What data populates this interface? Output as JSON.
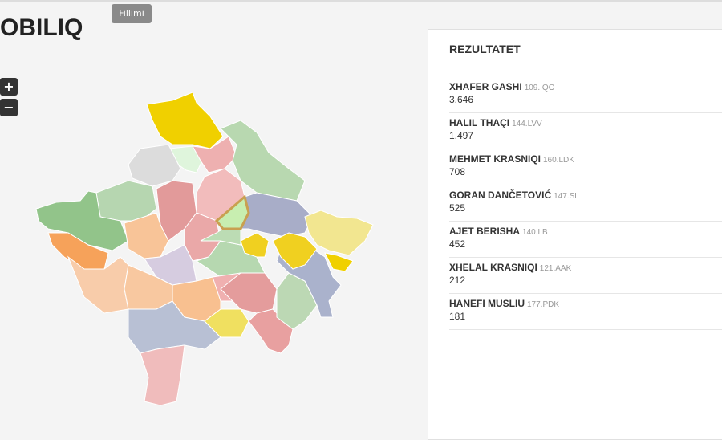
{
  "header": {
    "title": "OBILIQ",
    "tooltip": "Fillimi"
  },
  "zoom": {
    "in": "+",
    "out": "−"
  },
  "results": {
    "title": "REZULTATET",
    "rows": [
      {
        "name": "XHAFER GASHI",
        "party": "109.IQO",
        "votes": "3.646"
      },
      {
        "name": "HALIL THAÇI",
        "party": "144.LVV",
        "votes": "1.497"
      },
      {
        "name": "MEHMET KRASNIQI",
        "party": "160.LDK",
        "votes": "708"
      },
      {
        "name": "GORAN DANČETOVIĆ",
        "party": "147.SL",
        "votes": "525"
      },
      {
        "name": "AJET BERISHA",
        "party": "140.LB",
        "votes": "452"
      },
      {
        "name": "XHELAL KRASNIQI",
        "party": "121.AAK",
        "votes": "212"
      },
      {
        "name": "HANEFI MUSLIU",
        "party": "177.PDK",
        "votes": "181"
      }
    ]
  }
}
